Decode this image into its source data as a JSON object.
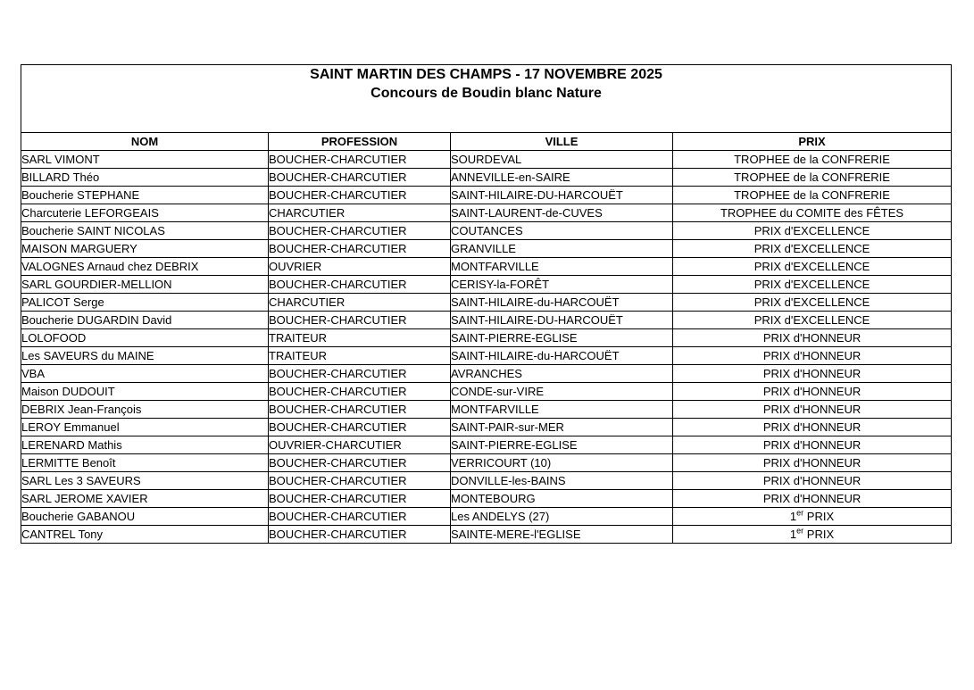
{
  "title": {
    "line1": "SAINT MARTIN DES CHAMPS - 17 NOVEMBRE 2025",
    "line2": "Concours de Boudin blanc Nature"
  },
  "colors": {
    "text": "#000000",
    "border": "#000000",
    "background": "#ffffff"
  },
  "table": {
    "headers": [
      "NOM",
      "PROFESSION",
      "VILLE",
      "PRIX"
    ],
    "rows": [
      {
        "nom": "SARL VIMONT",
        "profession": "BOUCHER-CHARCUTIER",
        "ville": "SOURDEVAL",
        "prix": "TROPHEE de la CONFRERIE"
      },
      {
        "nom": "BILLARD Théo",
        "profession": "BOUCHER-CHARCUTIER",
        "ville": "ANNEVILLE-en-SAIRE",
        "prix": "TROPHEE de la CONFRERIE"
      },
      {
        "nom": "Boucherie STEPHANE",
        "profession": "BOUCHER-CHARCUTIER",
        "ville": "SAINT-HILAIRE-DU-HARCOUËT",
        "prix": "TROPHEE de la CONFRERIE"
      },
      {
        "nom": "Charcuterie LEFORGEAIS",
        "profession": "CHARCUTIER",
        "ville": "SAINT-LAURENT-de-CUVES",
        "prix": "TROPHEE du COMITE des FÊTES"
      },
      {
        "nom": "Boucherie SAINT NICOLAS",
        "profession": "BOUCHER-CHARCUTIER",
        "ville": "COUTANCES",
        "prix": "PRIX d'EXCELLENCE"
      },
      {
        "nom": "MAISON MARGUERY",
        "profession": "BOUCHER-CHARCUTIER",
        "ville": "GRANVILLE",
        "prix": "PRIX d'EXCELLENCE"
      },
      {
        "nom": "VALOGNES Arnaud chez DEBRIX",
        "profession": "OUVRIER",
        "ville": "MONTFARVILLE",
        "prix": "PRIX d'EXCELLENCE"
      },
      {
        "nom": "SARL GOURDIER-MELLION",
        "profession": "BOUCHER-CHARCUTIER",
        "ville": "CERISY-la-FORÊT",
        "prix": "PRIX d'EXCELLENCE"
      },
      {
        "nom": "PALICOT Serge",
        "profession": "CHARCUTIER",
        "ville": "SAINT-HILAIRE-du-HARCOUËT",
        "prix": "PRIX d'EXCELLENCE"
      },
      {
        "nom": "Boucherie DUGARDIN David",
        "profession": "BOUCHER-CHARCUTIER",
        "ville": "SAINT-HILAIRE-DU-HARCOUËT",
        "prix": "PRIX d'EXCELLENCE"
      },
      {
        "nom": "LOLOFOOD",
        "profession": "TRAITEUR",
        "ville": "SAINT-PIERRE-EGLISE",
        "prix": "PRIX d'HONNEUR"
      },
      {
        "nom": "Les SAVEURS du MAINE",
        "profession": "TRAITEUR",
        "ville": "SAINT-HILAIRE-du-HARCOUËT",
        "prix": "PRIX d'HONNEUR"
      },
      {
        "nom": "VBA",
        "profession": "BOUCHER-CHARCUTIER",
        "ville": "AVRANCHES",
        "prix": "PRIX d'HONNEUR"
      },
      {
        "nom": "Maison DUDOUIT",
        "profession": "BOUCHER-CHARCUTIER",
        "ville": "CONDE-sur-VIRE",
        "prix": "PRIX d'HONNEUR"
      },
      {
        "nom": "DEBRIX Jean-François",
        "profession": "BOUCHER-CHARCUTIER",
        "ville": "MONTFARVILLE",
        "prix": "PRIX d'HONNEUR"
      },
      {
        "nom": "LEROY Emmanuel",
        "profession": "BOUCHER-CHARCUTIER",
        "ville": "SAINT-PAIR-sur-MER",
        "prix": "PRIX d'HONNEUR"
      },
      {
        "nom": "LERENARD Mathis",
        "profession": "OUVRIER-CHARCUTIER",
        "ville": "SAINT-PIERRE-EGLISE",
        "prix": "PRIX d'HONNEUR"
      },
      {
        "nom": "LERMITTE Benoît",
        "profession": "BOUCHER-CHARCUTIER",
        "ville": "VERRICOURT (10)",
        "prix": "PRIX d'HONNEUR"
      },
      {
        "nom": "SARL Les 3 SAVEURS",
        "profession": "BOUCHER-CHARCUTIER",
        "ville": "DONVILLE-les-BAINS",
        "prix": "PRIX d'HONNEUR"
      },
      {
        "nom": "SARL JEROME XAVIER",
        "profession": "BOUCHER-CHARCUTIER",
        "ville": "MONTEBOURG",
        "prix": "PRIX d'HONNEUR"
      },
      {
        "nom": "Boucherie GABANOU",
        "profession": "BOUCHER-CHARCUTIER",
        "ville": "Les ANDELYS (27)",
        "prix": "1er PRIX",
        "prix_parts": [
          "1",
          "er",
          " PRIX"
        ]
      },
      {
        "nom": "CANTREL Tony",
        "profession": "BOUCHER-CHARCUTIER",
        "ville": "SAINTE-MERE-l'EGLISE",
        "prix": "1er PRIX",
        "prix_parts": [
          "1",
          "er",
          " PRIX"
        ]
      }
    ]
  }
}
